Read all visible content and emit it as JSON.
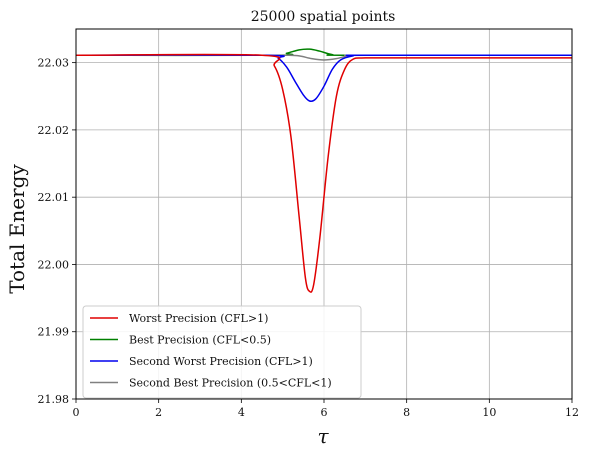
{
  "chart_data": {
    "type": "line",
    "title": "25000 spatial points",
    "xlabel": "τ",
    "ylabel": "Total Energy",
    "xlim": [
      0,
      12
    ],
    "ylim": [
      21.98,
      22.035
    ],
    "x_ticks": [
      "0",
      "2",
      "4",
      "6",
      "8",
      "10",
      "12"
    ],
    "y_ticks": [
      "21.98",
      "21.99",
      "22.00",
      "22.01",
      "22.02",
      "22.03"
    ],
    "grid": true,
    "legend_position": "lower-left",
    "series": [
      {
        "name": "Worst Precision (CFL>1)",
        "color": "#e00000",
        "x": [
          0,
          4.5,
          4.8,
          5.0,
          5.2,
          5.4,
          5.55,
          5.65,
          5.75,
          5.9,
          6.1,
          6.3,
          6.5,
          6.7,
          7.0,
          8,
          12
        ],
        "y": [
          22.0311,
          22.0311,
          22.0295,
          22.026,
          22.019,
          22.007,
          21.998,
          21.996,
          21.997,
          22.004,
          22.016,
          22.025,
          22.029,
          22.0305,
          22.0307,
          22.0307,
          22.0307
        ]
      },
      {
        "name": "Best Precision (CFL<0.5)",
        "color": "#008000",
        "x": [
          0,
          4.8,
          5.1,
          5.4,
          5.65,
          5.9,
          6.2,
          6.6,
          12
        ],
        "y": [
          22.0311,
          22.0311,
          22.0314,
          22.0319,
          22.032,
          22.0317,
          22.0312,
          22.0311,
          22.0311
        ]
      },
      {
        "name": "Second Worst Precision (CFL>1)",
        "color": "#0000ee",
        "x": [
          0,
          4.6,
          4.9,
          5.1,
          5.3,
          5.5,
          5.65,
          5.8,
          6.0,
          6.2,
          6.4,
          6.7,
          7.0,
          12
        ],
        "y": [
          22.0311,
          22.0311,
          22.0306,
          22.0293,
          22.0272,
          22.0252,
          22.0243,
          22.0246,
          22.0265,
          22.029,
          22.0304,
          22.031,
          22.0311,
          22.0311
        ]
      },
      {
        "name": "Second Best Precision (0.5<CFL<1)",
        "color": "#808080",
        "x": [
          0,
          4.8,
          5.1,
          5.4,
          5.7,
          6.0,
          6.3,
          6.6,
          7.0,
          12
        ],
        "y": [
          22.0311,
          22.0311,
          22.0311,
          22.031,
          22.0306,
          22.0304,
          22.0306,
          22.031,
          22.0311,
          22.0311
        ]
      }
    ]
  }
}
